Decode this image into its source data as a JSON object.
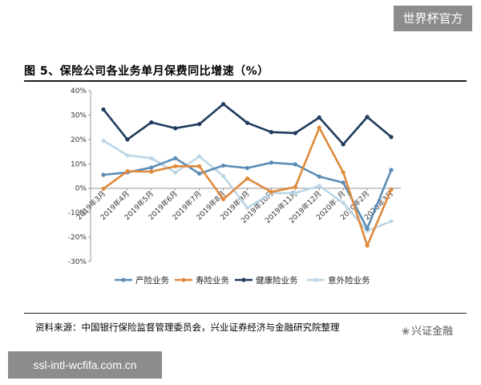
{
  "watermark_top": "世界杯官方",
  "watermark_bottom": "ssl-intl-wcfifa.com.cn",
  "brand": "兴证金融",
  "brand_icon": "wechat-icon",
  "source_note": "资料来源：中国银行保险监督管理委员会，兴业证券经济与金融研究院整理",
  "chart_data": {
    "type": "line",
    "title": "图 5、保险公司各业务单月保费同比增速（%）",
    "categories": [
      "2019年3月",
      "2019年4月",
      "2019年5月",
      "2019年6月",
      "2019年7月",
      "2019年8月",
      "2019年9月",
      "2019年10月",
      "2019年11月",
      "2019年12月",
      "2020年1月",
      "2020年2月",
      "2020年3月"
    ],
    "ylim": [
      -30,
      40
    ],
    "yticks": [
      -30,
      -20,
      -10,
      0,
      10,
      20,
      30,
      40
    ],
    "ytick_labels": [
      "-30%",
      "-20%",
      "-10%",
      "0%",
      "10%",
      "20%",
      "30%",
      "40%"
    ],
    "grid": false,
    "legend_position": "bottom",
    "series": [
      {
        "name": "产险业务",
        "color": "#5b8db8",
        "values": [
          5.5,
          6.5,
          8.5,
          12.3,
          6.0,
          9.3,
          8.3,
          10.5,
          9.8,
          4.8,
          2.3,
          -16.5,
          7.5
        ]
      },
      {
        "name": "寿险业务",
        "color": "#e08a3c",
        "values": [
          -0.2,
          7.0,
          6.8,
          9.0,
          9.0,
          -4.5,
          4.0,
          -1.5,
          0.5,
          24.8,
          6.5,
          -23.5,
          -0.5
        ]
      },
      {
        "name": "健康险业务",
        "color": "#1f3b5c",
        "values": [
          32.3,
          20.0,
          27.0,
          24.6,
          26.3,
          34.5,
          26.8,
          23.0,
          22.6,
          29.0,
          18.0,
          29.2,
          21.0
        ]
      },
      {
        "name": "意外险业务",
        "color": "#bcd6e6",
        "values": [
          19.5,
          13.5,
          12.3,
          6.5,
          13.0,
          5.0,
          -8.0,
          -2.0,
          -2.0,
          1.0,
          -6.0,
          -17.5,
          -13.5
        ]
      }
    ]
  }
}
